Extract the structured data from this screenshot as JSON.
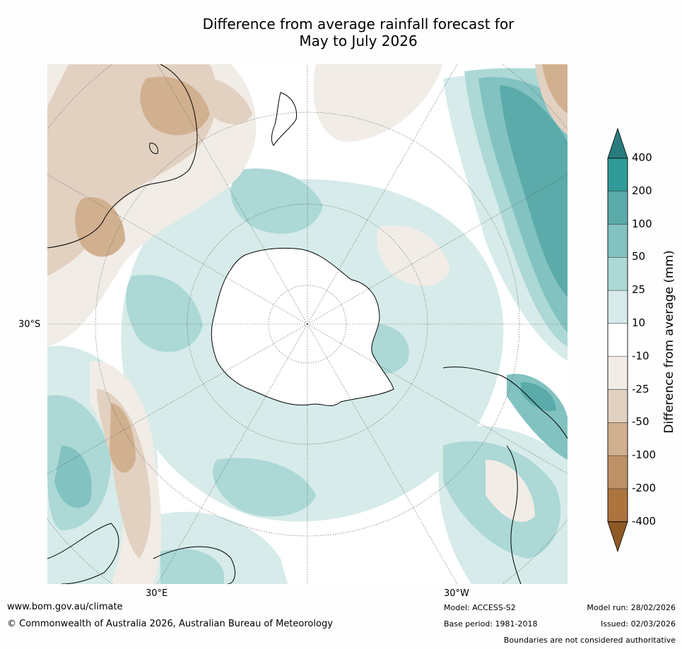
{
  "title": {
    "line1": "Difference from average rainfall forecast for",
    "line2": "May to July 2026"
  },
  "map": {
    "projection": "South polar stereographic, southern hemisphere",
    "lat_label_left": "30°S",
    "lon_label_bottom_left": "30°E",
    "lon_label_bottom_right": "30°W"
  },
  "legend": {
    "title": "Difference from average (mm)",
    "ticks": [
      "400",
      "200",
      "100",
      "50",
      "25",
      "10",
      "-10",
      "-25",
      "-50",
      "-100",
      "-200",
      "-400"
    ],
    "bins": [
      {
        "range": "> 400",
        "color": "#2a7c7c"
      },
      {
        "range": "200 to 400",
        "color": "#2f9a98"
      },
      {
        "range": "100 to 200",
        "color": "#5aabaa"
      },
      {
        "range": "50 to 100",
        "color": "#82c2c1"
      },
      {
        "range": "25 to 50",
        "color": "#acd8d6"
      },
      {
        "range": "10 to 25",
        "color": "#d6ebea"
      },
      {
        "range": "-10 to 10",
        "color": "#ffffff"
      },
      {
        "range": "-25 to -10",
        "color": "#f1ece6"
      },
      {
        "range": "-50 to -25",
        "color": "#e2d1c1"
      },
      {
        "range": "-100 to -50",
        "color": "#d1b090"
      },
      {
        "range": "-200 to -100",
        "color": "#be9167"
      },
      {
        "range": "-400 to -200",
        "color": "#ad743e"
      },
      {
        "range": "< -400",
        "color": "#8f5924"
      }
    ]
  },
  "footer": {
    "url": "www.bom.gov.au/climate",
    "copyright": "© Commonwealth of Australia 2026, Australian Bureau of Meteorology",
    "model": "Model: ACCESS-S2",
    "base_period": "Base period: 1981-2018",
    "model_run": "Model run: 28/02/2026",
    "issued": "Issued: 02/03/2026",
    "disclaimer": "Boundaries are not considered authoritative"
  }
}
